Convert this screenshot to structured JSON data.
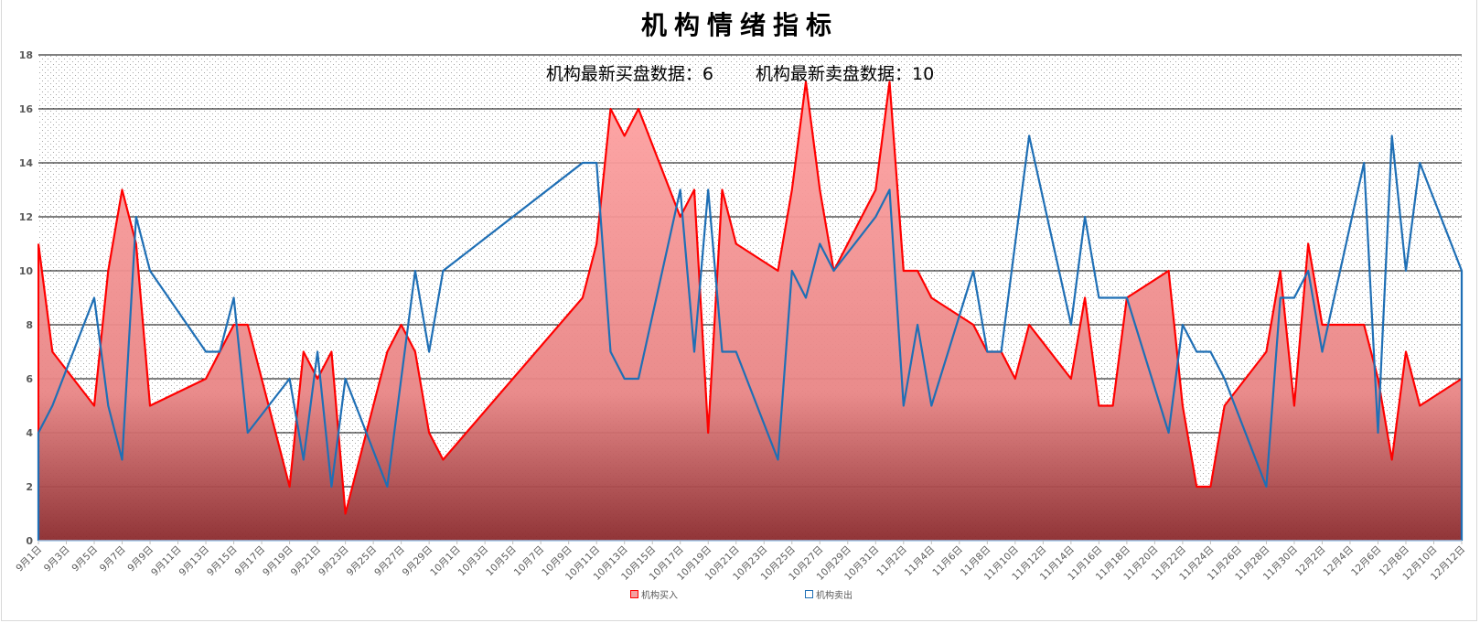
{
  "title": "机构情绪指标",
  "subtitle": {
    "buy_label": "机构最新买盘数据：",
    "buy_value": "6",
    "sell_label": "机构最新卖盘数据：",
    "sell_value": "10"
  },
  "legend": [
    {
      "label": "机构买入",
      "color": "#ff0000"
    },
    {
      "label": "机构卖出",
      "color": "#1f6fb5"
    }
  ],
  "colors": {
    "buy_line": "#ff0000",
    "sell_line": "#1f6fb5",
    "area_top": "#ffa3a3",
    "area_bottom": "#8b2a2d",
    "gridline": "#000000",
    "axis_label": "#595959"
  },
  "chart_data": {
    "type": "line",
    "title": "机构情绪指标",
    "subtitle": "机构最新买盘数据：6    机构最新卖盘数据：10",
    "xlabel": "",
    "ylabel": "",
    "ylim": [
      0,
      18
    ],
    "yticks": [
      0,
      2,
      4,
      6,
      8,
      10,
      12,
      14,
      16,
      18
    ],
    "grid": true,
    "legend_position": "bottom",
    "x_axis": {
      "type": "date",
      "start": "9月1日",
      "end": "12月12日",
      "tick_interval_days": 2,
      "tick_labels": [
        "9月1日",
        "9月3日",
        "9月5日",
        "9月7日",
        "9月9日",
        "9月11日",
        "9月13日",
        "9月15日",
        "9月17日",
        "9月19日",
        "9月21日",
        "9月23日",
        "9月25日",
        "9月27日",
        "9月29日",
        "10月1日",
        "10月3日",
        "10月5日",
        "10月7日",
        "10月9日",
        "10月11日",
        "10月13日",
        "10月15日",
        "10月17日",
        "10月19日",
        "10月21日",
        "10月23日",
        "10月25日",
        "10月27日",
        "10月29日",
        "10月31日",
        "11月2日",
        "11月4日",
        "11月6日",
        "11月8日",
        "11月10日",
        "11月12日",
        "11月14日",
        "11月16日",
        "11月18日",
        "11月20日",
        "11月22日",
        "11月24日",
        "11月26日",
        "11月28日",
        "11月30日",
        "12月2日",
        "12月4日",
        "12月6日",
        "12月8日",
        "12月10日",
        "12月12日"
      ]
    },
    "x": [
      "9/1",
      "9/2",
      "9/5",
      "9/6",
      "9/7",
      "9/8",
      "9/9",
      "9/13",
      "9/14",
      "9/15",
      "9/16",
      "9/19",
      "9/20",
      "9/21",
      "9/22",
      "9/23",
      "9/26",
      "9/27",
      "9/28",
      "9/29",
      "9/30",
      "10/10",
      "10/11",
      "10/12",
      "10/13",
      "10/14",
      "10/17",
      "10/18",
      "10/19",
      "10/20",
      "10/21",
      "10/24",
      "10/25",
      "10/26",
      "10/27",
      "10/28",
      "10/31",
      "11/1",
      "11/2",
      "11/3",
      "11/4",
      "11/7",
      "11/8",
      "11/9",
      "11/10",
      "11/11",
      "11/14",
      "11/15",
      "11/16",
      "11/17",
      "11/18",
      "11/21",
      "11/22",
      "11/23",
      "11/24",
      "11/25",
      "11/28",
      "11/29",
      "11/30",
      "12/1",
      "12/2",
      "12/5",
      "12/6",
      "12/7",
      "12/8",
      "12/9",
      "12/12"
    ],
    "series": [
      {
        "name": "机构买入",
        "style": "area",
        "values": [
          11,
          7,
          5,
          10,
          13,
          11,
          5,
          6,
          7,
          8,
          8,
          2,
          7,
          6,
          7,
          1,
          7,
          8,
          7,
          4,
          3,
          9,
          11,
          16,
          15,
          16,
          12,
          13,
          4,
          13,
          11,
          10,
          13,
          17,
          13,
          10,
          13,
          17,
          10,
          10,
          9,
          8,
          7,
          7,
          6,
          8,
          6,
          9,
          5,
          5,
          9,
          10,
          5,
          2,
          2,
          5,
          7,
          10,
          5,
          11,
          8,
          8,
          6,
          3,
          7,
          5,
          6
        ]
      },
      {
        "name": "机构卖出",
        "style": "line",
        "values": [
          4,
          5,
          9,
          5,
          3,
          12,
          10,
          7,
          7,
          9,
          4,
          6,
          3,
          7,
          2,
          6,
          2,
          6,
          10,
          7,
          10,
          14,
          14,
          7,
          6,
          6,
          13,
          7,
          13,
          7,
          7,
          3,
          10,
          9,
          11,
          10,
          12,
          13,
          5,
          8,
          5,
          10,
          7,
          7,
          11,
          15,
          8,
          12,
          9,
          9,
          9,
          4,
          8,
          7,
          7,
          6,
          2,
          9,
          9,
          10,
          7,
          14,
          4,
          15,
          10,
          14,
          10
        ]
      }
    ]
  }
}
